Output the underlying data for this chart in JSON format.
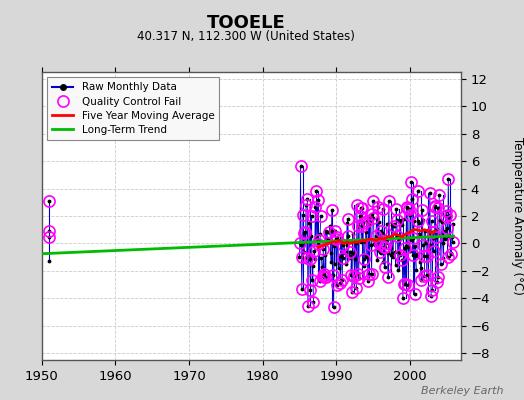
{
  "title": "TOOELE",
  "subtitle": "40.317 N, 112.300 W (United States)",
  "ylabel": "Temperature Anomaly (°C)",
  "watermark": "Berkeley Earth",
  "xlim": [
    1950,
    2007
  ],
  "ylim": [
    -8.5,
    12.5
  ],
  "yticks": [
    -8,
    -6,
    -4,
    -2,
    0,
    2,
    4,
    6,
    8,
    10,
    12
  ],
  "xticks": [
    1950,
    1960,
    1970,
    1980,
    1990,
    2000
  ],
  "bg_color": "#d8d8d8",
  "plot_bg_color": "#ffffff",
  "raw_color": "#0000cc",
  "qc_color": "#ff00ff",
  "ma_color": "#ff0000",
  "trend_color": "#00bb00",
  "trend_x": [
    1950,
    2006
  ],
  "trend_y": [
    -0.75,
    0.55
  ],
  "early_data": {
    "x": [
      1951.0,
      1951.0,
      1951.0,
      1951.0
    ],
    "y": [
      3.1,
      0.9,
      0.5,
      -1.3
    ],
    "qc": [
      true,
      true,
      true,
      false
    ]
  },
  "ma_x": [
    1987.5,
    1988.0,
    1988.5,
    1989.0,
    1989.5,
    1990.0,
    1990.5,
    1991.0,
    1991.5,
    1992.0,
    1992.5,
    1993.0,
    1993.5,
    1994.0,
    1994.5,
    1995.0,
    1995.5,
    1996.0,
    1996.5,
    1997.0,
    1997.5,
    1998.0,
    1998.5,
    1999.0,
    1999.5,
    2000.0,
    2000.5,
    2001.0,
    2001.5,
    2002.0,
    2002.5,
    2003.0,
    2003.5
  ],
  "ma_y": [
    -0.3,
    -0.2,
    -0.1,
    0.0,
    0.1,
    0.1,
    0.2,
    0.0,
    0.1,
    0.0,
    0.1,
    0.1,
    0.2,
    0.2,
    0.3,
    0.3,
    0.2,
    0.4,
    0.3,
    0.5,
    0.5,
    0.7,
    0.6,
    0.5,
    0.7,
    0.8,
    1.0,
    1.0,
    0.9,
    1.0,
    0.9,
    0.8,
    0.9
  ],
  "seed_monthly": 42,
  "seed_dense": 7
}
